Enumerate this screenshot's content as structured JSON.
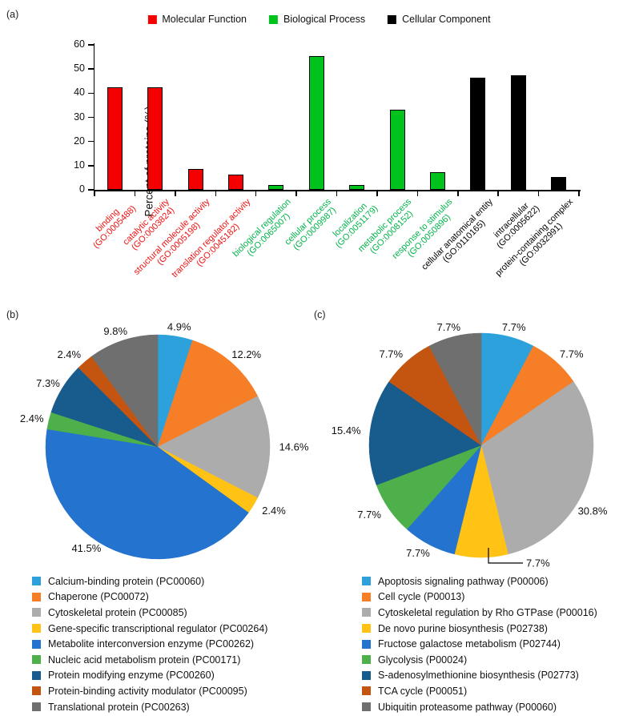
{
  "figure": {
    "panel_a_label": "(a)",
    "panel_b_label": "(b)",
    "panel_c_label": "(c)"
  },
  "chart_data": [
    {
      "type": "bar",
      "title": "",
      "xlabel": "",
      "ylabel": "Percent of proteins (%)",
      "ylim": [
        0,
        60
      ],
      "yticks": [
        0,
        10,
        20,
        30,
        40,
        50,
        60
      ],
      "grid": false,
      "legend_position": "top",
      "legend": [
        {
          "label": "Molecular Function",
          "color": "#f40000"
        },
        {
          "label": "Biological Process",
          "color": "#00c21d"
        },
        {
          "label": "Cellular Component",
          "color": "#000000"
        }
      ],
      "label_colors": [
        "#f01010",
        "#00b44a",
        "#000000"
      ],
      "bars": [
        {
          "label": "binding",
          "go": "(GO:0005488)",
          "value": 42.4,
          "group": 0
        },
        {
          "label": "catalytic activity",
          "go": "(GO:0003824)",
          "value": 42.4,
          "group": 0
        },
        {
          "label": "structural molecule activity",
          "go": "(GO:0005198)",
          "value": 8.5,
          "group": 0
        },
        {
          "label": "translation regulator activity",
          "go": "(GO:0045182)",
          "value": 6.3,
          "group": 0
        },
        {
          "label": "biological regulation",
          "go": "(GO:0065007)",
          "value": 1.9,
          "group": 1
        },
        {
          "label": "cellular process",
          "go": "(GO:0009987)",
          "value": 55.2,
          "group": 1
        },
        {
          "label": "localization",
          "go": "(GO:0051179)",
          "value": 1.9,
          "group": 1
        },
        {
          "label": "metabolic process",
          "go": "(GO:0008152)",
          "value": 33.0,
          "group": 1
        },
        {
          "label": "response to stimulus",
          "go": "(GO:0050896)",
          "value": 7.4,
          "group": 1
        },
        {
          "label": "cellular anatomical entity",
          "go": "(GO:0110165)",
          "value": 46.4,
          "group": 2
        },
        {
          "label": "intracellular",
          "go": "(GO:0005622)",
          "value": 47.5,
          "group": 2
        },
        {
          "label": "protein-containing complex",
          "go": "(GO:0032991)",
          "value": 5.2,
          "group": 2
        }
      ]
    },
    {
      "type": "pie",
      "panel": "b",
      "slices": [
        {
          "label": "Calcium-binding protein (PC00060)",
          "value": 4.9,
          "pct": "4.9%",
          "color": "#2ca1dc"
        },
        {
          "label": "Chaperone (PC00072)",
          "value": 12.2,
          "pct": "12.2%",
          "color": "#f57e27"
        },
        {
          "label": "Cytoskeletal protein (PC00085)",
          "value": 14.6,
          "pct": "14.6%",
          "color": "#acacac"
        },
        {
          "label": "Gene-specific transcriptional regulator (PC00264)",
          "value": 2.4,
          "pct": "2.4%",
          "color": "#ffc215"
        },
        {
          "label": "Metabolite interconversion enzyme (PC00262)",
          "value": 41.5,
          "pct": "41.5%",
          "color": "#2473ce"
        },
        {
          "label": "Nucleic acid metabolism protein (PC00171)",
          "value": 2.4,
          "pct": "2.4%",
          "color": "#4eb04a"
        },
        {
          "label": "Protein modifying enzyme (PC00260)",
          "value": 7.3,
          "pct": "7.3%",
          "color": "#185b8d"
        },
        {
          "label": "Protein-binding activity modulator (PC00095)",
          "value": 2.4,
          "pct": "2.4%",
          "color": "#c45511"
        },
        {
          "label": "Translational protein (PC00263)",
          "value": 9.8,
          "pct": "9.8%",
          "color": "#6f6f6f"
        }
      ]
    },
    {
      "type": "pie",
      "panel": "c",
      "slices": [
        {
          "label": "Apoptosis signaling pathway (P00006)",
          "value": 7.7,
          "pct": "7.7%",
          "color": "#2ca1dc"
        },
        {
          "label": "Cell cycle (P00013)",
          "value": 7.7,
          "pct": "7.7%",
          "color": "#f57e27"
        },
        {
          "label": "Cytoskeletal regulation by Rho GTPase (P00016)",
          "value": 30.8,
          "pct": "30.8%",
          "color": "#acacac"
        },
        {
          "label": "De novo purine biosynthesis (P02738)",
          "value": 7.7,
          "pct": "7.7%",
          "color": "#ffc215",
          "leader": true
        },
        {
          "label": "Fructose galactose metabolism (P02744)",
          "value": 7.7,
          "pct": "7.7%",
          "color": "#2473ce"
        },
        {
          "label": "Glycolysis (P00024)",
          "value": 7.7,
          "pct": "7.7%",
          "color": "#4eb04a"
        },
        {
          "label": "S-adenosylmethionine biosynthesis (P02773)",
          "value": 15.4,
          "pct": "15.4%",
          "color": "#185b8d"
        },
        {
          "label": "TCA cycle (P00051)",
          "value": 7.7,
          "pct": "7.7%",
          "color": "#c45511"
        },
        {
          "label": "Ubiquitin proteasome pathway (P00060)",
          "value": 7.7,
          "pct": "7.7%",
          "color": "#6f6f6f"
        }
      ]
    }
  ]
}
